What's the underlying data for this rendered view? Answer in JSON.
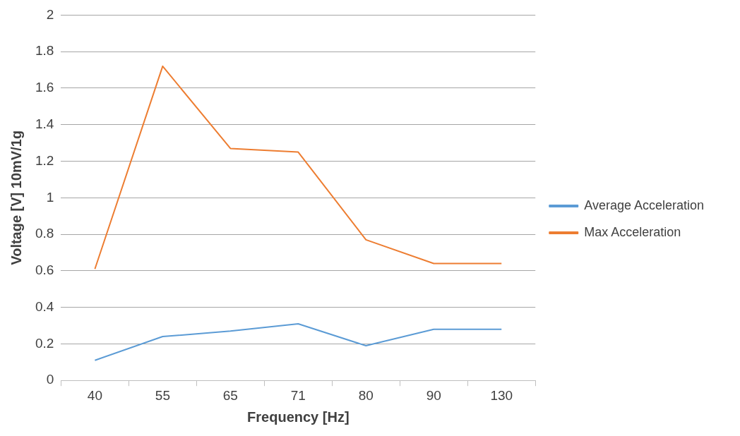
{
  "chart_data": {
    "type": "line",
    "xlabel": "Frequency [Hz]",
    "ylabel": "Voltage [V] 10mV/1g",
    "categories": [
      "40",
      "55",
      "65",
      "71",
      "80",
      "90",
      "130"
    ],
    "series": [
      {
        "name": "Average Acceleration",
        "color": "#5b9bd5",
        "values": [
          0.11,
          0.24,
          0.27,
          0.31,
          0.19,
          0.28,
          0.28
        ]
      },
      {
        "name": "Max Acceleration",
        "color": "#ed7d31",
        "values": [
          0.61,
          1.72,
          1.27,
          1.25,
          0.77,
          0.64,
          0.64
        ]
      }
    ],
    "ylim": [
      0,
      2
    ],
    "yticks": [
      0,
      0.2,
      0.4,
      0.6,
      0.8,
      1,
      1.2,
      1.4,
      1.6,
      1.8,
      2
    ],
    "grid": "y",
    "legend": "right",
    "marker": "none",
    "line_style": "solid"
  }
}
